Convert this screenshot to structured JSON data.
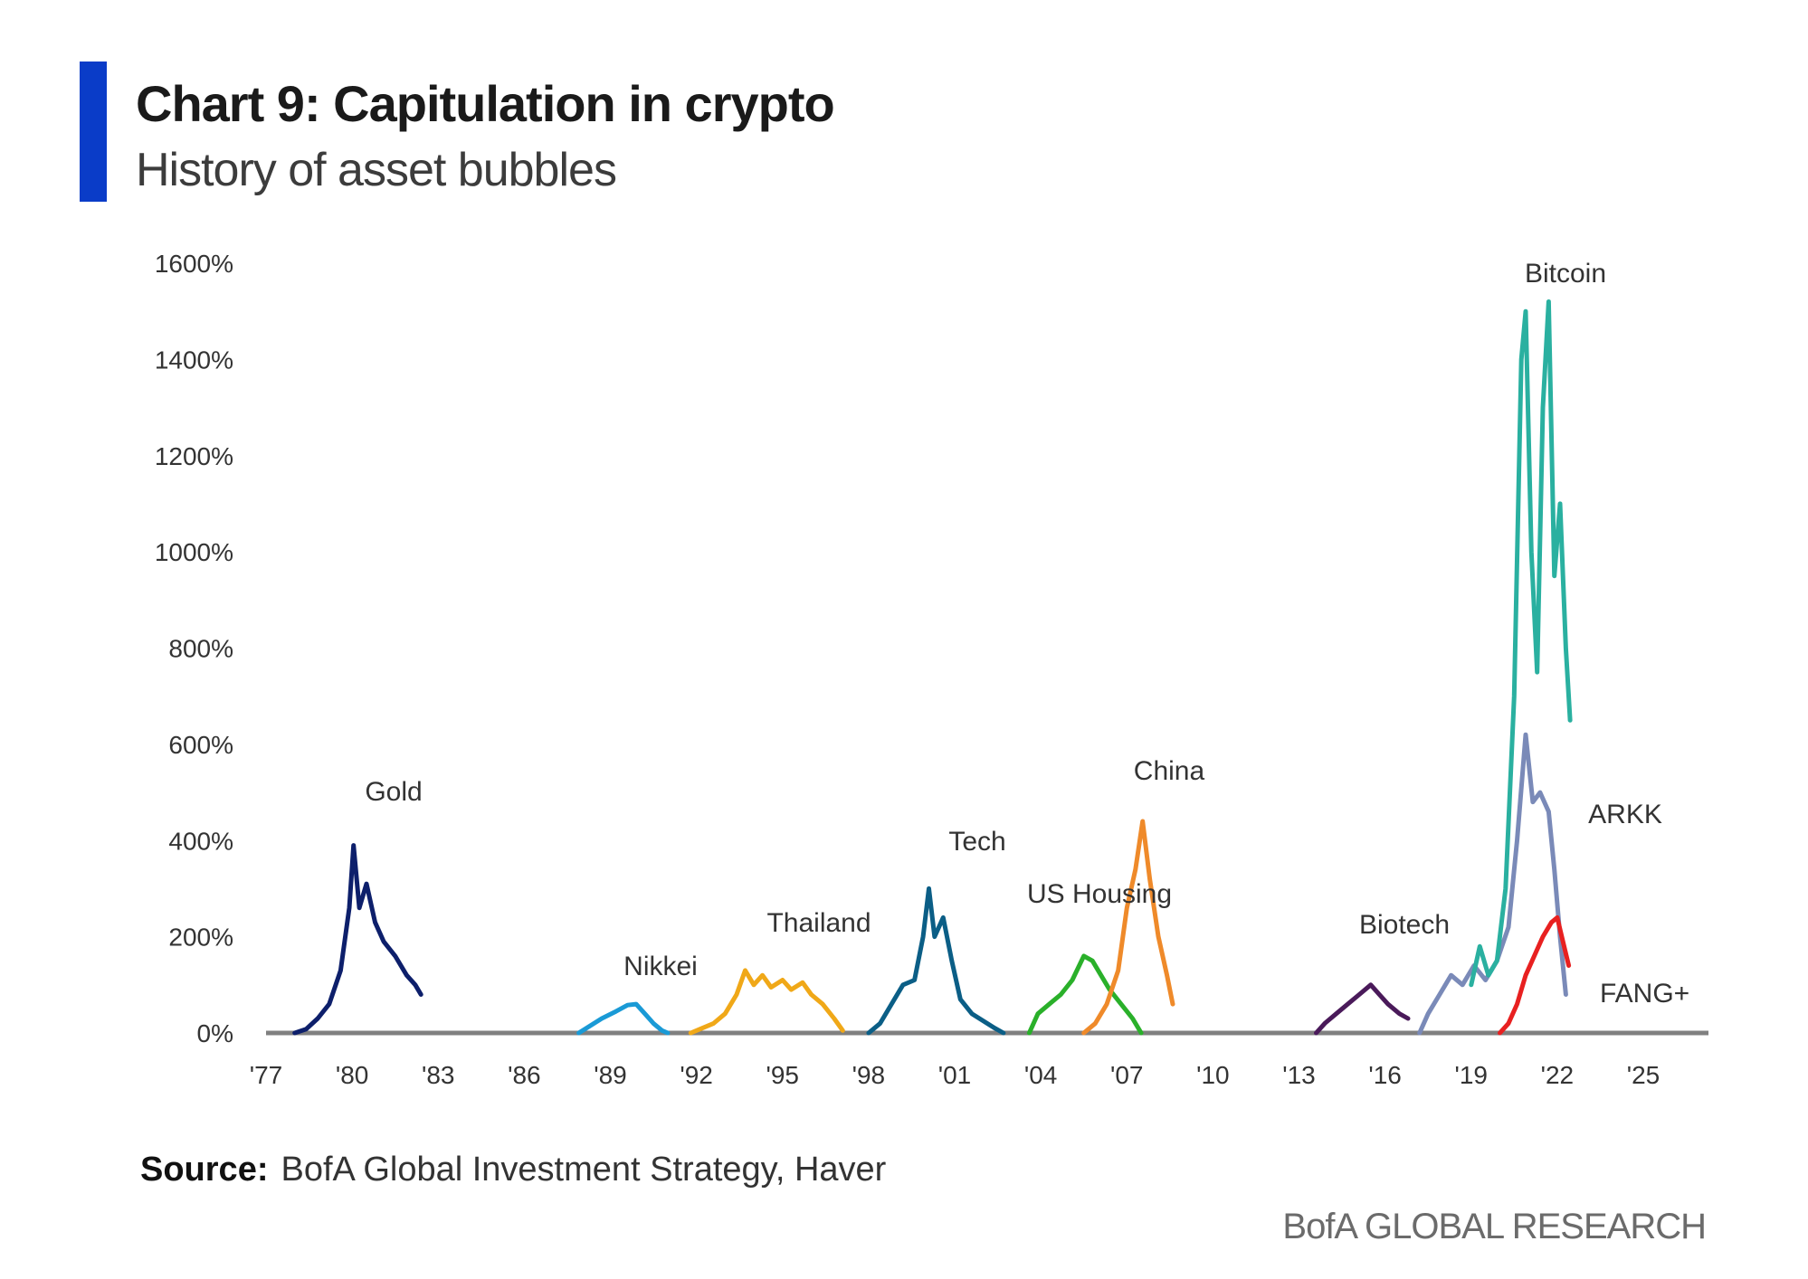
{
  "header": {
    "title": "Chart 9: Capitulation in crypto",
    "subtitle": "History of asset bubbles"
  },
  "footer": {
    "source_label": "Source:",
    "source_text": "BofA Global Investment Strategy, Haver",
    "brand": "BofA GLOBAL RESEARCH"
  },
  "colors": {
    "accent_bar": "#0a3cc8",
    "axis": "#808080"
  },
  "chart_data": {
    "type": "line",
    "title": "Chart 9: Capitulation in crypto",
    "subtitle": "History of asset bubbles",
    "xlabel": "",
    "ylabel": "",
    "xlim": [
      1977,
      2026
    ],
    "ylim": [
      0,
      1600
    ],
    "x_ticks": [
      1977,
      1980,
      1983,
      1986,
      1989,
      1992,
      1995,
      1998,
      2001,
      2004,
      2007,
      2010,
      2013,
      2016,
      2019,
      2022,
      2025
    ],
    "x_tick_labels": [
      "'77",
      "'80",
      "'83",
      "'86",
      "'89",
      "'92",
      "'95",
      "'98",
      "'01",
      "'04",
      "'07",
      "'10",
      "'13",
      "'16",
      "'19",
      "'22",
      "'25"
    ],
    "y_ticks": [
      0,
      200,
      400,
      600,
      800,
      1000,
      1200,
      1400,
      1600
    ],
    "y_tick_labels": [
      "0%",
      "200%",
      "400%",
      "600%",
      "800%",
      "1000%",
      "1200%",
      "1400%",
      "1600%"
    ],
    "grid": false,
    "legend": "none (series labeled directly on chart)",
    "series": [
      {
        "name": "Gold",
        "color": "#0d1f6b",
        "points": [
          [
            1978.0,
            0
          ],
          [
            1978.4,
            8
          ],
          [
            1978.8,
            30
          ],
          [
            1979.2,
            60
          ],
          [
            1979.6,
            130
          ],
          [
            1979.9,
            260
          ],
          [
            1980.05,
            390
          ],
          [
            1980.25,
            260
          ],
          [
            1980.5,
            310
          ],
          [
            1980.8,
            230
          ],
          [
            1981.1,
            190
          ],
          [
            1981.5,
            160
          ],
          [
            1981.9,
            120
          ],
          [
            1982.2,
            100
          ],
          [
            1982.4,
            80
          ]
        ]
      },
      {
        "name": "Nikkei",
        "color": "#1a9ad6",
        "points": [
          [
            1987.9,
            0
          ],
          [
            1988.3,
            15
          ],
          [
            1988.7,
            30
          ],
          [
            1989.2,
            45
          ],
          [
            1989.6,
            58
          ],
          [
            1989.9,
            60
          ],
          [
            1990.2,
            40
          ],
          [
            1990.5,
            20
          ],
          [
            1990.8,
            5
          ],
          [
            1991.0,
            0
          ]
        ]
      },
      {
        "name": "Thailand",
        "color": "#f0a818",
        "points": [
          [
            1991.8,
            0
          ],
          [
            1992.2,
            10
          ],
          [
            1992.6,
            20
          ],
          [
            1993.0,
            40
          ],
          [
            1993.4,
            80
          ],
          [
            1993.7,
            130
          ],
          [
            1994.0,
            100
          ],
          [
            1994.3,
            120
          ],
          [
            1994.6,
            95
          ],
          [
            1995.0,
            110
          ],
          [
            1995.3,
            90
          ],
          [
            1995.7,
            105
          ],
          [
            1996.0,
            80
          ],
          [
            1996.4,
            60
          ],
          [
            1996.8,
            30
          ],
          [
            1997.1,
            5
          ]
        ]
      },
      {
        "name": "Tech",
        "color": "#0b5e86",
        "points": [
          [
            1998.0,
            0
          ],
          [
            1998.4,
            20
          ],
          [
            1998.8,
            60
          ],
          [
            1999.2,
            100
          ],
          [
            1999.6,
            110
          ],
          [
            1999.9,
            200
          ],
          [
            2000.1,
            300
          ],
          [
            2000.3,
            200
          ],
          [
            2000.6,
            240
          ],
          [
            2000.9,
            150
          ],
          [
            2001.2,
            70
          ],
          [
            2001.6,
            40
          ],
          [
            2002.0,
            25
          ],
          [
            2002.4,
            10
          ],
          [
            2002.7,
            0
          ]
        ]
      },
      {
        "name": "US Housing",
        "color": "#2ab02a",
        "points": [
          [
            2003.6,
            0
          ],
          [
            2003.9,
            40
          ],
          [
            2004.3,
            60
          ],
          [
            2004.7,
            80
          ],
          [
            2005.1,
            110
          ],
          [
            2005.5,
            160
          ],
          [
            2005.8,
            150
          ],
          [
            2006.1,
            120
          ],
          [
            2006.4,
            90
          ],
          [
            2006.8,
            60
          ],
          [
            2007.2,
            30
          ],
          [
            2007.5,
            0
          ]
        ]
      },
      {
        "name": "China",
        "color": "#ef8a2a",
        "points": [
          [
            2005.5,
            0
          ],
          [
            2005.9,
            20
          ],
          [
            2006.3,
            60
          ],
          [
            2006.7,
            130
          ],
          [
            2007.0,
            260
          ],
          [
            2007.3,
            340
          ],
          [
            2007.55,
            440
          ],
          [
            2007.8,
            320
          ],
          [
            2008.1,
            200
          ],
          [
            2008.4,
            120
          ],
          [
            2008.6,
            60
          ]
        ]
      },
      {
        "name": "Biotech",
        "color": "#4a1a5a",
        "points": [
          [
            2013.6,
            0
          ],
          [
            2013.9,
            20
          ],
          [
            2014.3,
            40
          ],
          [
            2014.7,
            60
          ],
          [
            2015.1,
            80
          ],
          [
            2015.5,
            100
          ],
          [
            2015.8,
            80
          ],
          [
            2016.1,
            60
          ],
          [
            2016.5,
            40
          ],
          [
            2016.8,
            30
          ]
        ]
      },
      {
        "name": "ARKK",
        "color": "#7a8ab8",
        "points": [
          [
            2017.2,
            0
          ],
          [
            2017.5,
            40
          ],
          [
            2017.9,
            80
          ],
          [
            2018.3,
            120
          ],
          [
            2018.7,
            100
          ],
          [
            2019.1,
            140
          ],
          [
            2019.5,
            110
          ],
          [
            2019.9,
            150
          ],
          [
            2020.3,
            220
          ],
          [
            2020.6,
            400
          ],
          [
            2020.9,
            620
          ],
          [
            2021.15,
            480
          ],
          [
            2021.4,
            500
          ],
          [
            2021.7,
            460
          ],
          [
            2021.9,
            340
          ],
          [
            2022.1,
            200
          ],
          [
            2022.3,
            80
          ]
        ]
      },
      {
        "name": "FANG+",
        "color": "#e82020",
        "points": [
          [
            2020.0,
            0
          ],
          [
            2020.3,
            20
          ],
          [
            2020.6,
            60
          ],
          [
            2020.9,
            120
          ],
          [
            2021.2,
            160
          ],
          [
            2021.5,
            200
          ],
          [
            2021.8,
            230
          ],
          [
            2022.0,
            240
          ],
          [
            2022.2,
            190
          ],
          [
            2022.4,
            140
          ]
        ]
      },
      {
        "name": "Bitcoin",
        "color": "#2ab0a0",
        "points": [
          [
            2019.0,
            100
          ],
          [
            2019.3,
            180
          ],
          [
            2019.6,
            120
          ],
          [
            2019.9,
            150
          ],
          [
            2020.2,
            300
          ],
          [
            2020.5,
            700
          ],
          [
            2020.75,
            1400
          ],
          [
            2020.9,
            1500
          ],
          [
            2021.1,
            1000
          ],
          [
            2021.3,
            750
          ],
          [
            2021.5,
            1300
          ],
          [
            2021.7,
            1520
          ],
          [
            2021.9,
            950
          ],
          [
            2022.1,
            1100
          ],
          [
            2022.3,
            800
          ],
          [
            2022.45,
            650
          ]
        ]
      }
    ]
  }
}
